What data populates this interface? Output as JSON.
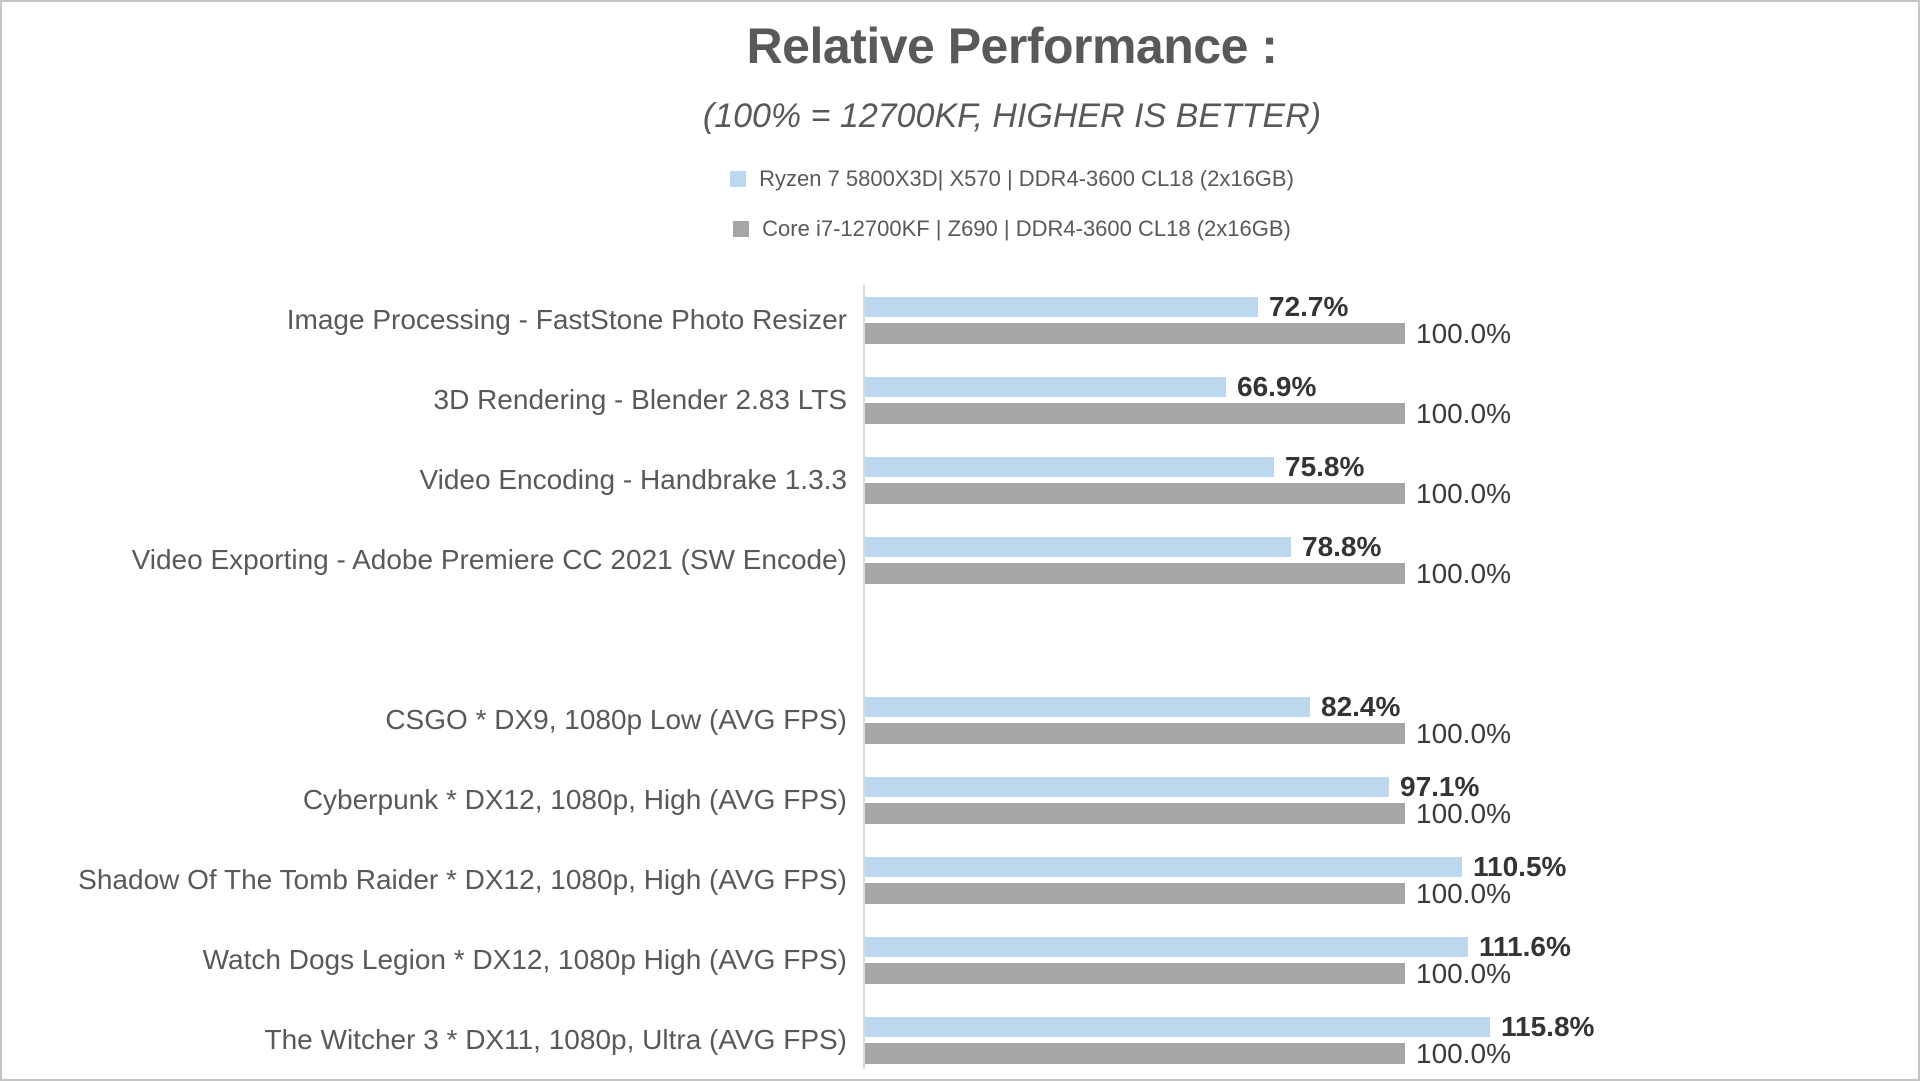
{
  "header": {
    "title": "Relative Performance :",
    "subtitle": "(100% = 12700KF, HIGHER IS BETTER)"
  },
  "legend": {
    "items": [
      {
        "label": "Ryzen 7 5800X3D| X570 | DDR4-3600 CL18 (2x16GB)",
        "color": "#BDD7EE"
      },
      {
        "label": "Core i7-12700KF | Z690 | DDR4-3600 CL18 (2x16GB)",
        "color": "#A6A6A6"
      }
    ]
  },
  "colors": {
    "ryzen_bar": "#BDD7EE",
    "intel_bar": "#A6A6A6",
    "axis_line": "#D9D9D9",
    "title_text": "#595959",
    "value_text": "#3B3B3B"
  },
  "chart_data": {
    "type": "bar",
    "orientation": "horizontal",
    "title": "Relative Performance :",
    "subtitle": "(100% = 12700KF, HIGHER IS BETTER)",
    "unit": "%",
    "grid": false,
    "legend_position": "top",
    "xlim": [
      0,
      120
    ],
    "baseline_value": 100.0,
    "gap_after_index": 3,
    "sections": [
      {
        "name": "productivity",
        "category_indexes": [
          0,
          1,
          2,
          3
        ]
      },
      {
        "name": "gaming",
        "category_indexes": [
          4,
          5,
          6,
          7,
          8
        ]
      }
    ],
    "categories": [
      "Image Processing - FastStone Photo Resizer",
      "3D Rendering - Blender 2.83 LTS",
      "Video Encoding - Handbrake 1.3.3",
      "Video Exporting - Adobe Premiere CC 2021 (SW Encode)",
      "CSGO * DX9, 1080p Low (AVG FPS)",
      "Cyberpunk * DX12, 1080p, High (AVG FPS)",
      "Shadow Of The Tomb Raider * DX12, 1080p, High (AVG FPS)",
      "Watch Dogs Legion * DX12, 1080p High (AVG FPS)",
      "The Witcher 3 * DX11, 1080p, Ultra (AVG FPS)"
    ],
    "series": [
      {
        "name": "Ryzen 7 5800X3D| X570 | DDR4-3600 CL18 (2x16GB)",
        "color": "#BDD7EE",
        "values": [
          72.7,
          66.9,
          75.8,
          78.8,
          82.4,
          97.1,
          110.5,
          111.6,
          115.8
        ],
        "labels": [
          "72.7%",
          "66.9%",
          "75.8%",
          "78.8%",
          "82.4%",
          "97.1%",
          "110.5%",
          "111.6%",
          "115.8%"
        ]
      },
      {
        "name": "Core i7-12700KF | Z690 | DDR4-3600 CL18 (2x16GB)",
        "color": "#A6A6A6",
        "values": [
          100.0,
          100.0,
          100.0,
          100.0,
          100.0,
          100.0,
          100.0,
          100.0,
          100.0
        ],
        "labels": [
          "100.0%",
          "100.0%",
          "100.0%",
          "100.0%",
          "100.0%",
          "100.0%",
          "100.0%",
          "100.0%",
          "100.0%"
        ]
      }
    ]
  }
}
